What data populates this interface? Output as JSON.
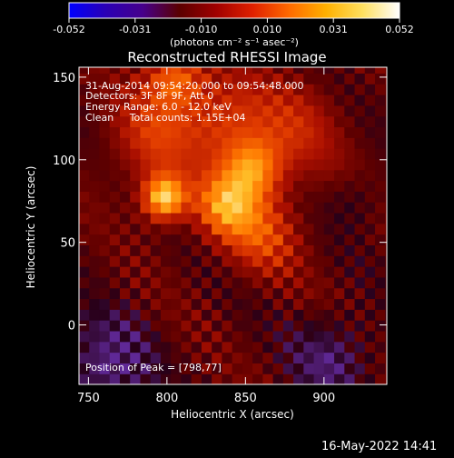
{
  "colorbar": {
    "ticks": [
      "-0.052",
      "-0.031",
      "-0.010",
      "0.010",
      "0.031",
      "0.052"
    ],
    "range": [
      -0.052,
      0.052
    ],
    "units": "(photons cm⁻² s⁻¹ asec⁻²)",
    "colors": [
      "#0000ff",
      "#2a00b4",
      "#46008c",
      "#5a0000",
      "#a00000",
      "#e02000",
      "#ff6a00",
      "#ffb000",
      "#ffe060",
      "#ffffff"
    ]
  },
  "title": "Reconstructed RHESSI Image",
  "info": {
    "time_range": "31-Aug-2014 09:54:20.000 to 09:54:48.000",
    "detectors": "Detectors: 3F 8F 9F, Att 0",
    "energy": "Energy Range: 6.0 - 12.0 keV",
    "clean": "Clean     Total counts: 1.15E+04",
    "peak": "Position of Peak = [798,77]"
  },
  "footer_date": "16-May-2022 14:41",
  "chart_data": {
    "type": "heatmap",
    "title": "Reconstructed RHESSI Image",
    "xlabel": "Heliocentric X (arcsec)",
    "ylabel": "Heliocentric Y (arcsec)",
    "xlim": [
      744,
      940
    ],
    "ylim": [
      -36,
      156
    ],
    "xticks": [
      750,
      800,
      850,
      900
    ],
    "yticks": [
      0,
      50,
      100,
      150
    ],
    "zlim": [
      -0.052,
      0.052
    ],
    "peak": [
      798,
      77
    ],
    "grid": false
  }
}
